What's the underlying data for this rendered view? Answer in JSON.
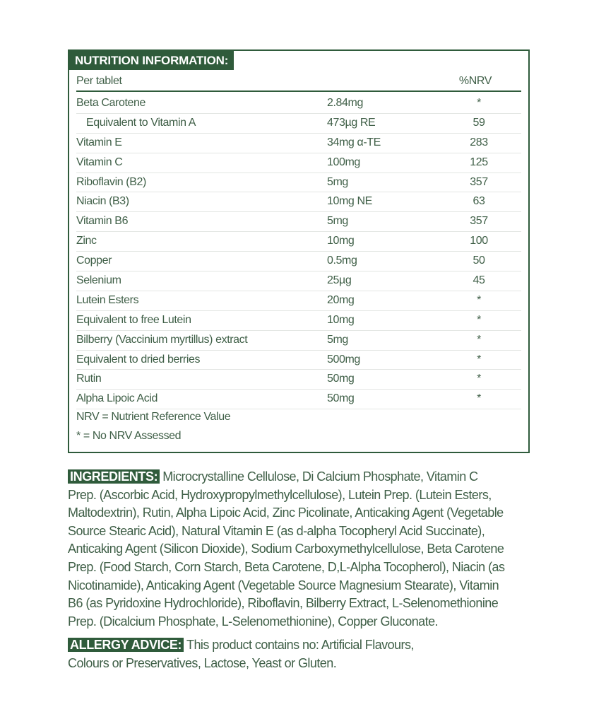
{
  "nutrition": {
    "title": "NUTRITION INFORMATION:",
    "header": {
      "name": "Per tablet",
      "nrv": "%NRV"
    },
    "rows": [
      {
        "name": "Beta Carotene",
        "amount": "2.84mg",
        "nrv": "*",
        "indent": false
      },
      {
        "name": "Equivalent to Vitamin A",
        "amount": "473µg RE",
        "nrv": "59",
        "indent": true
      },
      {
        "name": "Vitamin E",
        "amount": "34mg α-TE",
        "nrv": "283",
        "indent": false
      },
      {
        "name": "Vitamin C",
        "amount": "100mg",
        "nrv": "125",
        "indent": false
      },
      {
        "name": "Riboflavin (B2)",
        "amount": "5mg",
        "nrv": "357",
        "indent": false
      },
      {
        "name": "Niacin (B3)",
        "amount": "10mg NE",
        "nrv": "63",
        "indent": false
      },
      {
        "name": "Vitamin B6",
        "amount": "5mg",
        "nrv": "357",
        "indent": false
      },
      {
        "name": "Zinc",
        "amount": "10mg",
        "nrv": "100",
        "indent": false
      },
      {
        "name": "Copper",
        "amount": "0.5mg",
        "nrv": "50",
        "indent": false
      },
      {
        "name": "Selenium",
        "amount": "25µg",
        "nrv": "45",
        "indent": false
      },
      {
        "name": "Lutein Esters",
        "amount": "20mg",
        "nrv": "*",
        "indent": false
      },
      {
        "name": "Equivalent to free Lutein",
        "amount": "10mg",
        "nrv": "*",
        "indent": false
      },
      {
        "name": "Bilberry (Vaccinium myrtillus) extract",
        "amount": "5mg",
        "nrv": "*",
        "indent": false
      },
      {
        "name": "Equivalent to dried berries",
        "amount": "500mg",
        "nrv": "*",
        "indent": false
      },
      {
        "name": "Rutin",
        "amount": "50mg",
        "nrv": "*",
        "indent": false
      },
      {
        "name": "Alpha Lipoic Acid",
        "amount": "50mg",
        "nrv": "*",
        "indent": false
      }
    ],
    "notes": [
      "NRV = Nutrient Reference Value",
      "* = No NRV Assessed"
    ]
  },
  "ingredients": {
    "label": "INGREDIENTS:",
    "lines": [
      "Microcrystalline Cellulose, Di Calcium Phosphate, Vitamin C",
      "Prep. (Ascorbic Acid, Hydroxypropylmethylcellulose), Lutein Prep. (Lutein Esters,",
      "Maltodextrin), Rutin, Alpha Lipoic Acid, Zinc Picolinate, Anticaking Agent (Vegetable",
      "Source Stearic Acid), Natural Vitamin E (as d-alpha Tocopheryl Acid Succinate),",
      "Anticaking Agent (Silicon Dioxide), Sodium Carboxymethylcellulose, Beta Carotene",
      "Prep. (Food Starch, Corn Starch, Beta Carotene, D,L-Alpha Tocopherol), Niacin (as",
      "Nicotinamide), Anticaking Agent (Vegetable Source Magnesium Stearate), Vitamin",
      "B6 (as Pyridoxine Hydrochloride), Riboflavin, Bilberry Extract, L-Selenomethionine",
      "Prep. (Dicalcium Phosphate, L-Selenomethionine), Copper Gluconate."
    ]
  },
  "allergy": {
    "label": "ALLERGY ADVICE:",
    "lines": [
      "This product contains no: Artificial Flavours,",
      "Colours or Preservatives, Lactose, Yeast or Gluten."
    ]
  },
  "colors": {
    "brand_green": "#2f5b3b",
    "text": "#3f5f47"
  }
}
